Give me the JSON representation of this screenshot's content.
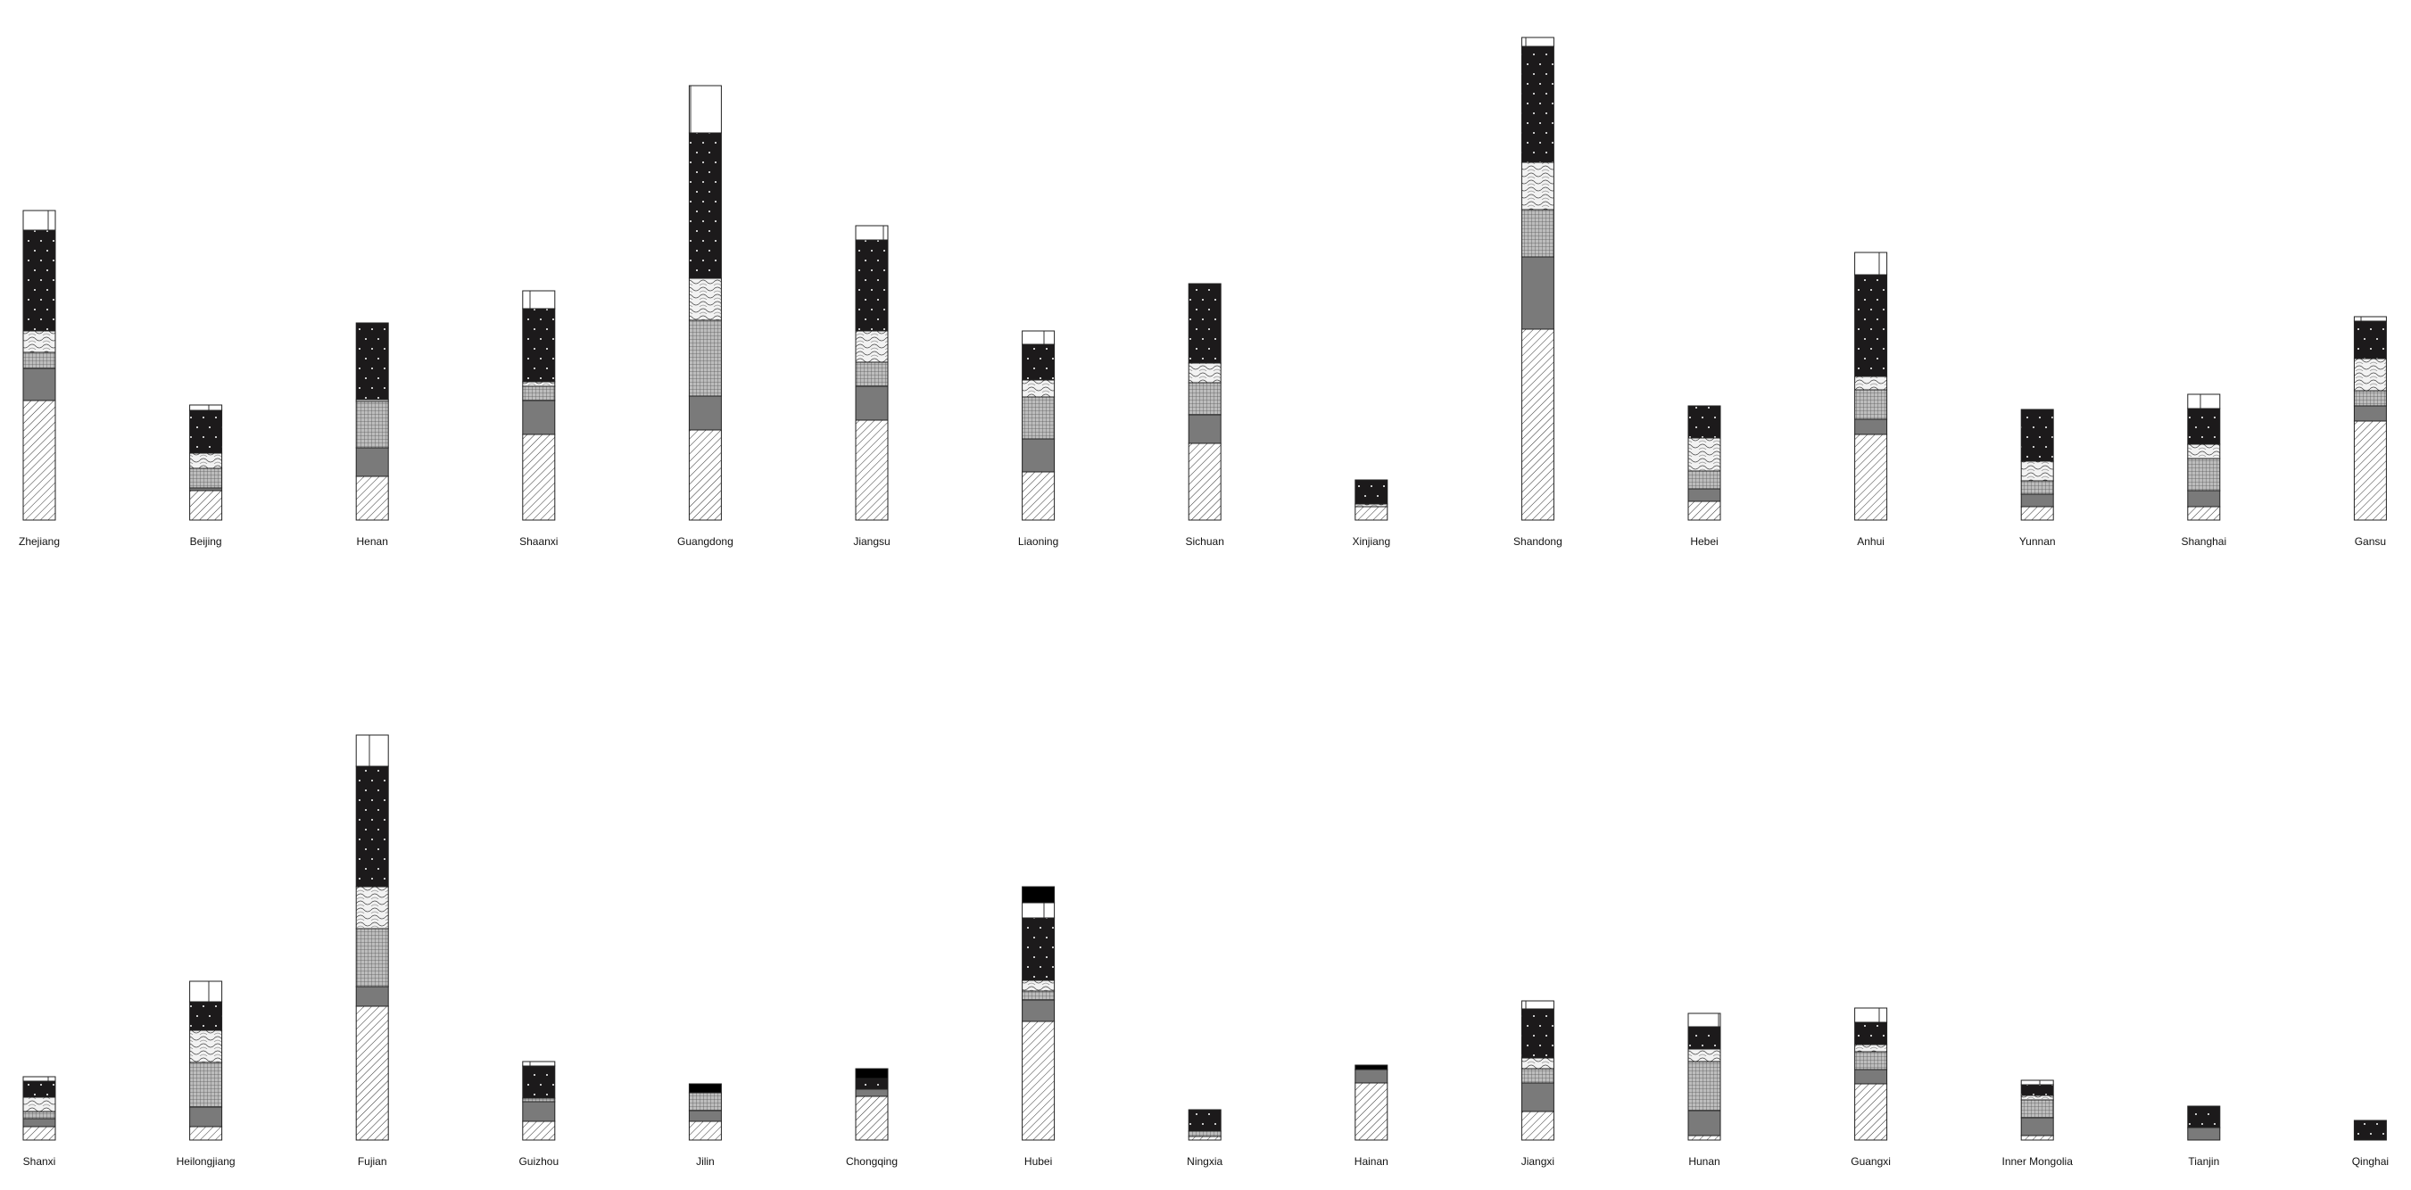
{
  "chart_data": {
    "type": "bar",
    "stacked": true,
    "legend": "none",
    "grid": false,
    "segment_patterns": [
      "diagonal-hatch",
      "gray",
      "grid-cross",
      "wave",
      "dots-black",
      "white-cross",
      "solid-black"
    ],
    "segment_colors": {
      "gray": "#7a7a7a",
      "dots-black": "#1c1a1b",
      "solid-black": "#000000",
      "outline": "#222222"
    },
    "rows": [
      {
        "ylim": [
          0,
          545
        ],
        "categories": [
          {
            "label": "Zhejiang",
            "segments": [
              134,
              36,
              18,
              24,
              113,
              22
            ]
          },
          {
            "label": "Beijing",
            "segments": [
              33,
              3,
              22,
              17,
              48,
              6
            ]
          },
          {
            "label": "Henan",
            "segments": [
              49,
              32,
              52,
              2,
              86,
              0
            ]
          },
          {
            "label": "Shaanxi",
            "segments": [
              96,
              38,
              16,
              5,
              82,
              20
            ]
          },
          {
            "label": "Guangdong",
            "segments": [
              101,
              38,
              85,
              47,
              163,
              53
            ]
          },
          {
            "label": "Jiangsu",
            "segments": [
              112,
              38,
              27,
              35,
              102,
              16
            ]
          },
          {
            "label": "Liaoning",
            "segments": [
              54,
              37,
              47,
              19,
              40,
              15
            ]
          },
          {
            "label": "Sichuan",
            "segments": [
              86,
              32,
              36,
              22,
              89,
              0
            ]
          },
          {
            "label": "Xinjiang",
            "segments": [
              15,
              0,
              0,
              3,
              27,
              0
            ]
          },
          {
            "label": "Shandong",
            "segments": [
              214,
              81,
              53,
              53,
              130,
              10
            ]
          },
          {
            "label": "Hebei",
            "segments": [
              21,
              14,
              20,
              37,
              36,
              0
            ]
          },
          {
            "label": "Anhui",
            "segments": [
              96,
              17,
              33,
              15,
              114,
              25
            ]
          },
          {
            "label": "Yunnan",
            "segments": [
              15,
              14,
              15,
              22,
              58,
              0
            ]
          },
          {
            "label": "Shanghai",
            "segments": [
              15,
              18,
              36,
              16,
              40,
              16
            ]
          },
          {
            "label": "Gansu",
            "segments": [
              111,
              17,
              17,
              36,
              42,
              5
            ]
          }
        ]
      },
      {
        "ylim": [
          0,
          545
        ],
        "categories": [
          {
            "label": "Shanxi",
            "segments": [
              15,
              9,
              8,
              16,
              18,
              5
            ]
          },
          {
            "label": "Heilongjiang",
            "segments": [
              15,
              22,
              50,
              36,
              32,
              23
            ]
          },
          {
            "label": "Fujian",
            "segments": [
              150,
              22,
              65,
              47,
              135,
              35
            ]
          },
          {
            "label": "Guizhou",
            "segments": [
              21,
              22,
              4,
              0,
              36,
              5
            ]
          },
          {
            "label": "Jilin",
            "segments": [
              21,
              12,
              20,
              0,
              0,
              0,
              10
            ]
          },
          {
            "label": "Chongqing",
            "segments": [
              49,
              8,
              0,
              0,
              12,
              0,
              11
            ]
          },
          {
            "label": "Hubei",
            "segments": [
              133,
              24,
              10,
              12,
              70,
              17,
              18
            ]
          },
          {
            "label": "Ningxia",
            "segments": [
              4,
              0,
              6,
              0,
              24,
              0
            ]
          },
          {
            "label": "Hainan",
            "segments": [
              64,
              15,
              0,
              0,
              0,
              0,
              5
            ]
          },
          {
            "label": "Jiangxi",
            "segments": [
              32,
              32,
              16,
              12,
              55,
              9
            ]
          },
          {
            "label": "Hunan",
            "segments": [
              5,
              28,
              55,
              14,
              25,
              15
            ]
          },
          {
            "label": "Guangxi",
            "segments": [
              63,
              16,
              20,
              8,
              25,
              16
            ]
          },
          {
            "label": "Inner Mongolia",
            "segments": [
              5,
              20,
              20,
              5,
              12,
              5
            ]
          },
          {
            "label": "Tianjin",
            "segments": [
              0,
              14,
              0,
              0,
              24,
              0
            ]
          },
          {
            "label": "Qinghai",
            "segments": [
              0,
              0,
              0,
              0,
              22,
              0
            ]
          }
        ]
      }
    ]
  }
}
